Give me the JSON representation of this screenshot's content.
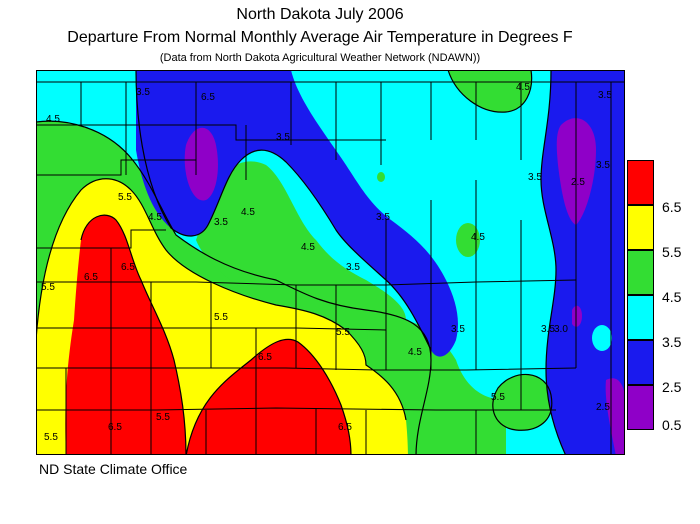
{
  "header": {
    "title": "North Dakota July 2006",
    "subtitle": "Departure From Normal Monthly Average Air Temperature in Degrees F",
    "source_note": "(Data from North Dakota Agricultural Weather Network (NDAWN))"
  },
  "legend": {
    "items": [
      {
        "label": "6.5",
        "color": "#ff0000"
      },
      {
        "label": "5.5",
        "color": "#ffff00"
      },
      {
        "label": "4.5",
        "color": "#33dd33"
      },
      {
        "label": "3.5",
        "color": "#00ffff"
      },
      {
        "label": "2.5",
        "color": "#1a1aee"
      },
      {
        "label": "0.5",
        "color": "#8f00c8"
      }
    ]
  },
  "map": {
    "contour_labels": [
      "4.5",
      "3.5",
      "5.5",
      "4.5",
      "3.5",
      "5.5",
      "6.5",
      "5.5",
      "6.5",
      "4.5",
      "3.5",
      "3.5",
      "4.5",
      "3.5",
      "5.5",
      "6.5",
      "5.5",
      "4.5",
      "3.5",
      "6.5",
      "5.5",
      "6.5",
      "6.5",
      "5.5",
      "4.5",
      "3.5",
      "4.5",
      "3.5",
      "2.5",
      "3.5",
      "3.5",
      "3.0",
      "2.5"
    ]
  },
  "footer": {
    "credit": "ND State Climate Office"
  }
}
